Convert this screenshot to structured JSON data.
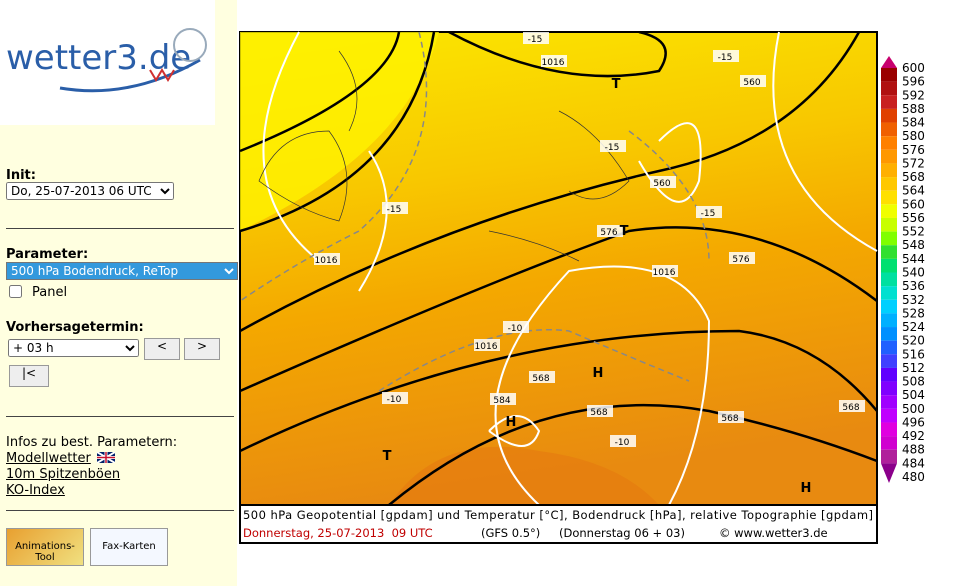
{
  "logo": "wetter3.de",
  "sidebar": {
    "init_label": "Init:",
    "init_value": "Do, 25-07-2013 06 UTC",
    "parameter_label": "Parameter:",
    "parameter_value": "500 hPa Bodendruck, ReTop",
    "panel_label": "Panel",
    "forecast_label": "Vorhersagetermin:",
    "forecast_value": "+ 03 h",
    "prev": "<",
    "next": ">",
    "first": "|<",
    "infos_label": "Infos zu best. Parametern:",
    "links": [
      "Modellwetter",
      "10m Spitzenböen",
      "KO-Index"
    ],
    "buttons": [
      "Animations-Tool",
      "Fax-Karten"
    ]
  },
  "map": {
    "caption": "500 hPa Geopotential [gpdam] und Temperatur [°C], Bodendruck [hPa], relative Topographie [gpdam]",
    "valid": "Donnerstag, 25-07-2013  09 UTC",
    "model": "(GFS 0.5°)",
    "run": "(Donnerstag 06 + 03)",
    "copyright": "© www.wetter3.de",
    "labels": [
      "-15",
      "1016",
      "T",
      "-15",
      "560",
      "-15",
      "560",
      "-15",
      "-15",
      "576",
      "T",
      "576",
      "1016",
      "1016",
      "-10",
      "1016",
      "568",
      "H",
      "584",
      "-10",
      "568",
      "H",
      "568",
      "568",
      "-10",
      "T",
      "H"
    ]
  },
  "legend": {
    "values": [
      600,
      596,
      592,
      588,
      584,
      580,
      576,
      572,
      568,
      564,
      560,
      556,
      552,
      548,
      544,
      540,
      536,
      532,
      528,
      524,
      520,
      516,
      512,
      508,
      504,
      500,
      496,
      492,
      488,
      484,
      480
    ],
    "colors": [
      "#c8006e",
      "#9a0000",
      "#b01010",
      "#c82020",
      "#e04000",
      "#f06000",
      "#ff8000",
      "#ff9800",
      "#ffb000",
      "#ffc800",
      "#ffe000",
      "#f0ff00",
      "#c8ff00",
      "#80ff00",
      "#30e030",
      "#00e070",
      "#00e0a0",
      "#00e0d0",
      "#00d0ff",
      "#00b0ff",
      "#0090ff",
      "#2060ff",
      "#4040ff",
      "#6000ff",
      "#8000ff",
      "#a000ff",
      "#c000ff",
      "#e000e0",
      "#d000d0",
      "#b0209b",
      "#8b008b"
    ]
  }
}
